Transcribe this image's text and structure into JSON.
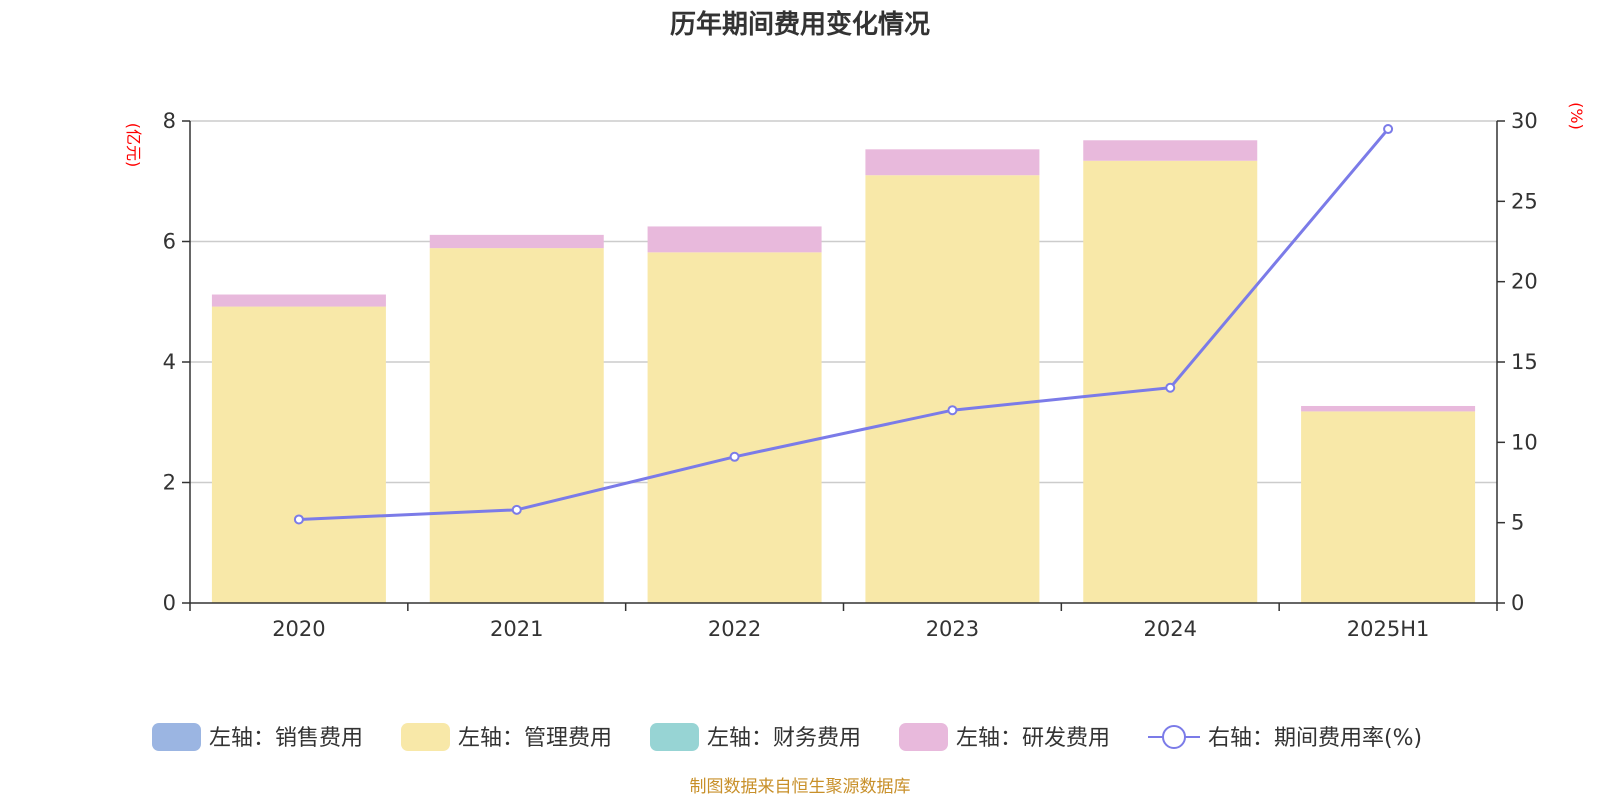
{
  "chart_data": {
    "type": "bar",
    "stacked": true,
    "title": "历年期间费用变化情况",
    "categories": [
      "2020",
      "2021",
      "2022",
      "2023",
      "2024",
      "2025H1"
    ],
    "y_left": {
      "unit": "(亿元)",
      "ylim": [
        0,
        8
      ],
      "ticks": [
        "0",
        "2",
        "4",
        "6",
        "8"
      ]
    },
    "y_right": {
      "unit": "(%)",
      "ylim": [
        0,
        30
      ],
      "ticks": [
        "0",
        "5",
        "10",
        "15",
        "20",
        "25",
        "30"
      ]
    },
    "grid": true,
    "legend_position": "bottom",
    "series": [
      {
        "name": "左轴：销售费用",
        "type": "bar",
        "axis": "left",
        "color": "#9bb5e2",
        "values": [
          0,
          0,
          0,
          0,
          0,
          0
        ]
      },
      {
        "name": "左轴：管理费用",
        "type": "bar",
        "axis": "left",
        "color": "#f8e8a8",
        "values": [
          4.92,
          5.89,
          5.82,
          7.1,
          7.34,
          3.18
        ]
      },
      {
        "name": "左轴：财务费用",
        "type": "bar",
        "axis": "left",
        "color": "#97d4d4",
        "values": [
          0,
          0,
          0,
          0,
          0,
          0
        ]
      },
      {
        "name": "左轴：研发费用",
        "type": "bar",
        "axis": "left",
        "color": "#e8b9dc",
        "values": [
          0.2,
          0.22,
          0.43,
          0.43,
          0.34,
          0.09
        ]
      },
      {
        "name": "右轴：期间费用率(%)",
        "type": "line",
        "axis": "right",
        "color": "#7b7be8",
        "values": [
          5.2,
          5.8,
          9.1,
          12.0,
          13.4,
          29.5
        ]
      }
    ]
  },
  "source_note": "制图数据来自恒生聚源数据库"
}
